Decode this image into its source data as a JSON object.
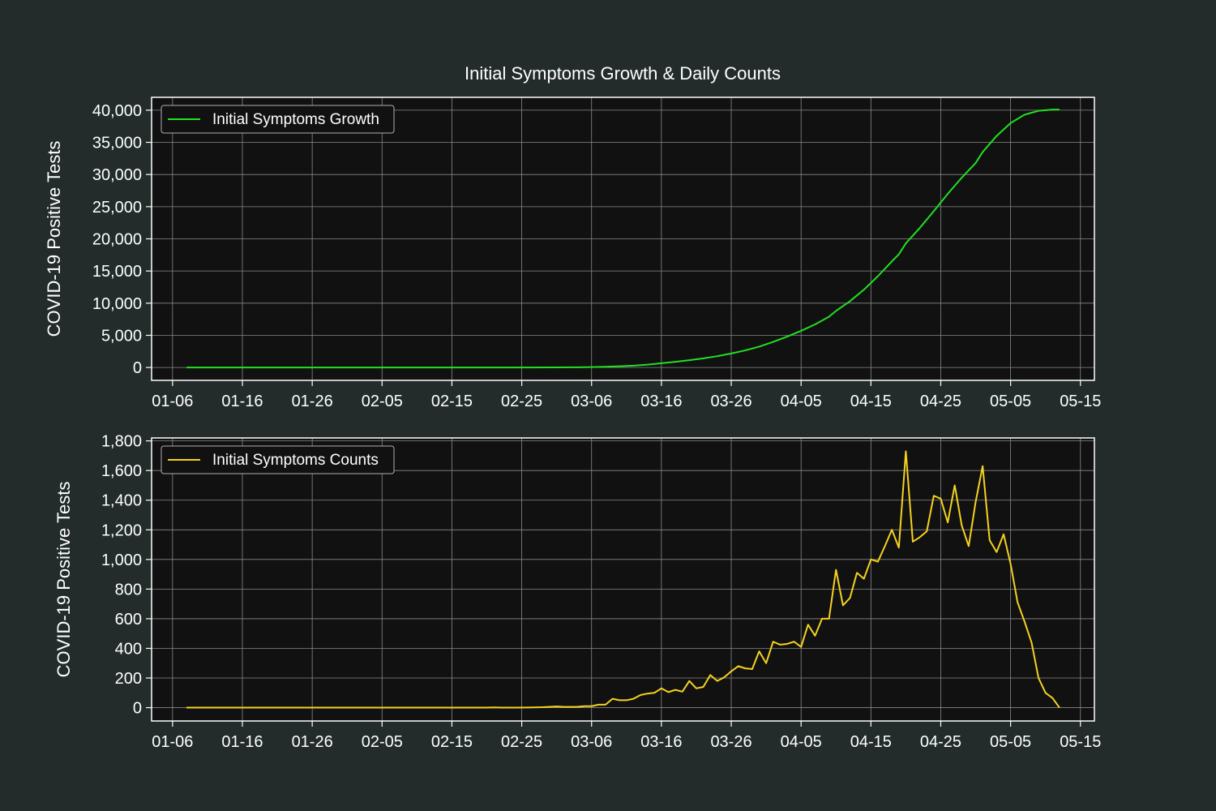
{
  "figure": {
    "title": "Initial Symptoms Growth & Daily Counts",
    "colors": {
      "background": "#232b2b",
      "plot_background": "#111111",
      "grid": "#8a8a8a",
      "axes": "#ffffff",
      "text": "#ffffff",
      "growth_line": "#22e022",
      "counts_line": "#f5d21f"
    }
  },
  "chart_data": [
    {
      "type": "line",
      "title": "Initial Symptoms Growth & Daily Counts",
      "xlabel": "",
      "ylabel": "COVID-19 Positive Tests",
      "x_type": "date",
      "x_start": "2020-01-08",
      "x_end": "2020-05-12",
      "xlim": [
        "2020-01-03",
        "2020-05-17"
      ],
      "ylim": [
        -2000,
        42000
      ],
      "xticks": [
        "01-06",
        "01-16",
        "01-26",
        "02-05",
        "02-15",
        "02-25",
        "03-06",
        "03-16",
        "03-26",
        "04-05",
        "04-15",
        "04-25",
        "05-05",
        "05-15"
      ],
      "yticks": [
        "0",
        "5,000",
        "10,000",
        "15,000",
        "20,000",
        "25,000",
        "30,000",
        "35,000",
        "40,000"
      ],
      "grid": true,
      "legend_position": "top-left",
      "series": [
        {
          "name": "Initial Symptoms Growth",
          "color": "#22e022",
          "points": [
            [
              "2020-01-08",
              0
            ],
            [
              "2020-02-20",
              0
            ],
            [
              "2020-03-01",
              10
            ],
            [
              "2020-03-04",
              30
            ],
            [
              "2020-03-06",
              60
            ],
            [
              "2020-03-08",
              110
            ],
            [
              "2020-03-10",
              190
            ],
            [
              "2020-03-12",
              290
            ],
            [
              "2020-03-14",
              450
            ],
            [
              "2020-03-16",
              660
            ],
            [
              "2020-03-18",
              880
            ],
            [
              "2020-03-20",
              1130
            ],
            [
              "2020-03-22",
              1420
            ],
            [
              "2020-03-24",
              1760
            ],
            [
              "2020-03-26",
              2180
            ],
            [
              "2020-03-28",
              2660
            ],
            [
              "2020-03-30",
              3240
            ],
            [
              "2020-04-01",
              3980
            ],
            [
              "2020-04-03",
              4800
            ],
            [
              "2020-04-05",
              5700
            ],
            [
              "2020-04-07",
              6700
            ],
            [
              "2020-04-09",
              7900
            ],
            [
              "2020-04-10",
              8800
            ],
            [
              "2020-04-12",
              10300
            ],
            [
              "2020-04-14",
              12100
            ],
            [
              "2020-04-16",
              14200
            ],
            [
              "2020-04-18",
              16500
            ],
            [
              "2020-04-19",
              17600
            ],
            [
              "2020-04-20",
              19300
            ],
            [
              "2020-04-22",
              21700
            ],
            [
              "2020-04-24",
              24300
            ],
            [
              "2020-04-26",
              27000
            ],
            [
              "2020-04-28",
              29500
            ],
            [
              "2020-04-30",
              31800
            ],
            [
              "2020-05-01",
              33500
            ],
            [
              "2020-05-03",
              36000
            ],
            [
              "2020-05-05",
              38000
            ],
            [
              "2020-05-07",
              39300
            ],
            [
              "2020-05-09",
              39900
            ],
            [
              "2020-05-11",
              40100
            ],
            [
              "2020-05-12",
              40100
            ]
          ]
        }
      ]
    },
    {
      "type": "line",
      "title": "",
      "xlabel": "",
      "ylabel": "COVID-19 Positive Tests",
      "x_type": "date",
      "x_start": "2020-01-08",
      "x_end": "2020-05-12",
      "xlim": [
        "2020-01-03",
        "2020-05-17"
      ],
      "ylim": [
        -90,
        1820
      ],
      "xticks": [
        "01-06",
        "01-16",
        "01-26",
        "02-05",
        "02-15",
        "02-25",
        "03-06",
        "03-16",
        "03-26",
        "04-05",
        "04-15",
        "04-25",
        "05-05",
        "05-15"
      ],
      "yticks": [
        "0",
        "200",
        "400",
        "600",
        "800",
        "1,000",
        "1,200",
        "1,400",
        "1,600",
        "1,800"
      ],
      "grid": true,
      "legend_position": "top-left",
      "series": [
        {
          "name": "Initial Symptoms Counts",
          "color": "#f5d21f",
          "points": [
            [
              "2020-01-08",
              0
            ],
            [
              "2020-02-20",
              0
            ],
            [
              "2020-02-21",
              2
            ],
            [
              "2020-02-22",
              0
            ],
            [
              "2020-02-26",
              1
            ],
            [
              "2020-02-28",
              3
            ],
            [
              "2020-03-01",
              8
            ],
            [
              "2020-03-02",
              5
            ],
            [
              "2020-03-04",
              6
            ],
            [
              "2020-03-05",
              10
            ],
            [
              "2020-03-06",
              10
            ],
            [
              "2020-03-07",
              20
            ],
            [
              "2020-03-08",
              20
            ],
            [
              "2020-03-09",
              60
            ],
            [
              "2020-03-10",
              50
            ],
            [
              "2020-03-11",
              50
            ],
            [
              "2020-03-12",
              60
            ],
            [
              "2020-03-13",
              85
            ],
            [
              "2020-03-14",
              95
            ],
            [
              "2020-03-15",
              100
            ],
            [
              "2020-03-16",
              130
            ],
            [
              "2020-03-17",
              105
            ],
            [
              "2020-03-18",
              120
            ],
            [
              "2020-03-19",
              108
            ],
            [
              "2020-03-20",
              180
            ],
            [
              "2020-03-21",
              130
            ],
            [
              "2020-03-22",
              140
            ],
            [
              "2020-03-23",
              220
            ],
            [
              "2020-03-24",
              180
            ],
            [
              "2020-03-25",
              205
            ],
            [
              "2020-03-26",
              245
            ],
            [
              "2020-03-27",
              280
            ],
            [
              "2020-03-28",
              265
            ],
            [
              "2020-03-29",
              260
            ],
            [
              "2020-03-30",
              380
            ],
            [
              "2020-03-31",
              300
            ],
            [
              "2020-04-01",
              445
            ],
            [
              "2020-04-02",
              425
            ],
            [
              "2020-04-03",
              430
            ],
            [
              "2020-04-04",
              445
            ],
            [
              "2020-04-05",
              410
            ],
            [
              "2020-04-06",
              560
            ],
            [
              "2020-04-07",
              485
            ],
            [
              "2020-04-08",
              600
            ],
            [
              "2020-04-09",
              600
            ],
            [
              "2020-04-10",
              930
            ],
            [
              "2020-04-11",
              690
            ],
            [
              "2020-04-12",
              740
            ],
            [
              "2020-04-13",
              910
            ],
            [
              "2020-04-14",
              870
            ],
            [
              "2020-04-15",
              1000
            ],
            [
              "2020-04-16",
              985
            ],
            [
              "2020-04-17",
              1090
            ],
            [
              "2020-04-18",
              1200
            ],
            [
              "2020-04-19",
              1080
            ],
            [
              "2020-04-20",
              1730
            ],
            [
              "2020-04-21",
              1120
            ],
            [
              "2020-04-22",
              1150
            ],
            [
              "2020-04-23",
              1190
            ],
            [
              "2020-04-24",
              1430
            ],
            [
              "2020-04-25",
              1410
            ],
            [
              "2020-04-26",
              1250
            ],
            [
              "2020-04-27",
              1500
            ],
            [
              "2020-04-28",
              1230
            ],
            [
              "2020-04-29",
              1090
            ],
            [
              "2020-04-30",
              1390
            ],
            [
              "2020-05-01",
              1630
            ],
            [
              "2020-05-02",
              1130
            ],
            [
              "2020-05-03",
              1050
            ],
            [
              "2020-05-04",
              1170
            ],
            [
              "2020-05-05",
              970
            ],
            [
              "2020-05-06",
              710
            ],
            [
              "2020-05-07",
              580
            ],
            [
              "2020-05-08",
              440
            ],
            [
              "2020-05-09",
              200
            ],
            [
              "2020-05-10",
              100
            ],
            [
              "2020-05-11",
              65
            ],
            [
              "2020-05-12",
              0
            ]
          ]
        }
      ]
    }
  ]
}
